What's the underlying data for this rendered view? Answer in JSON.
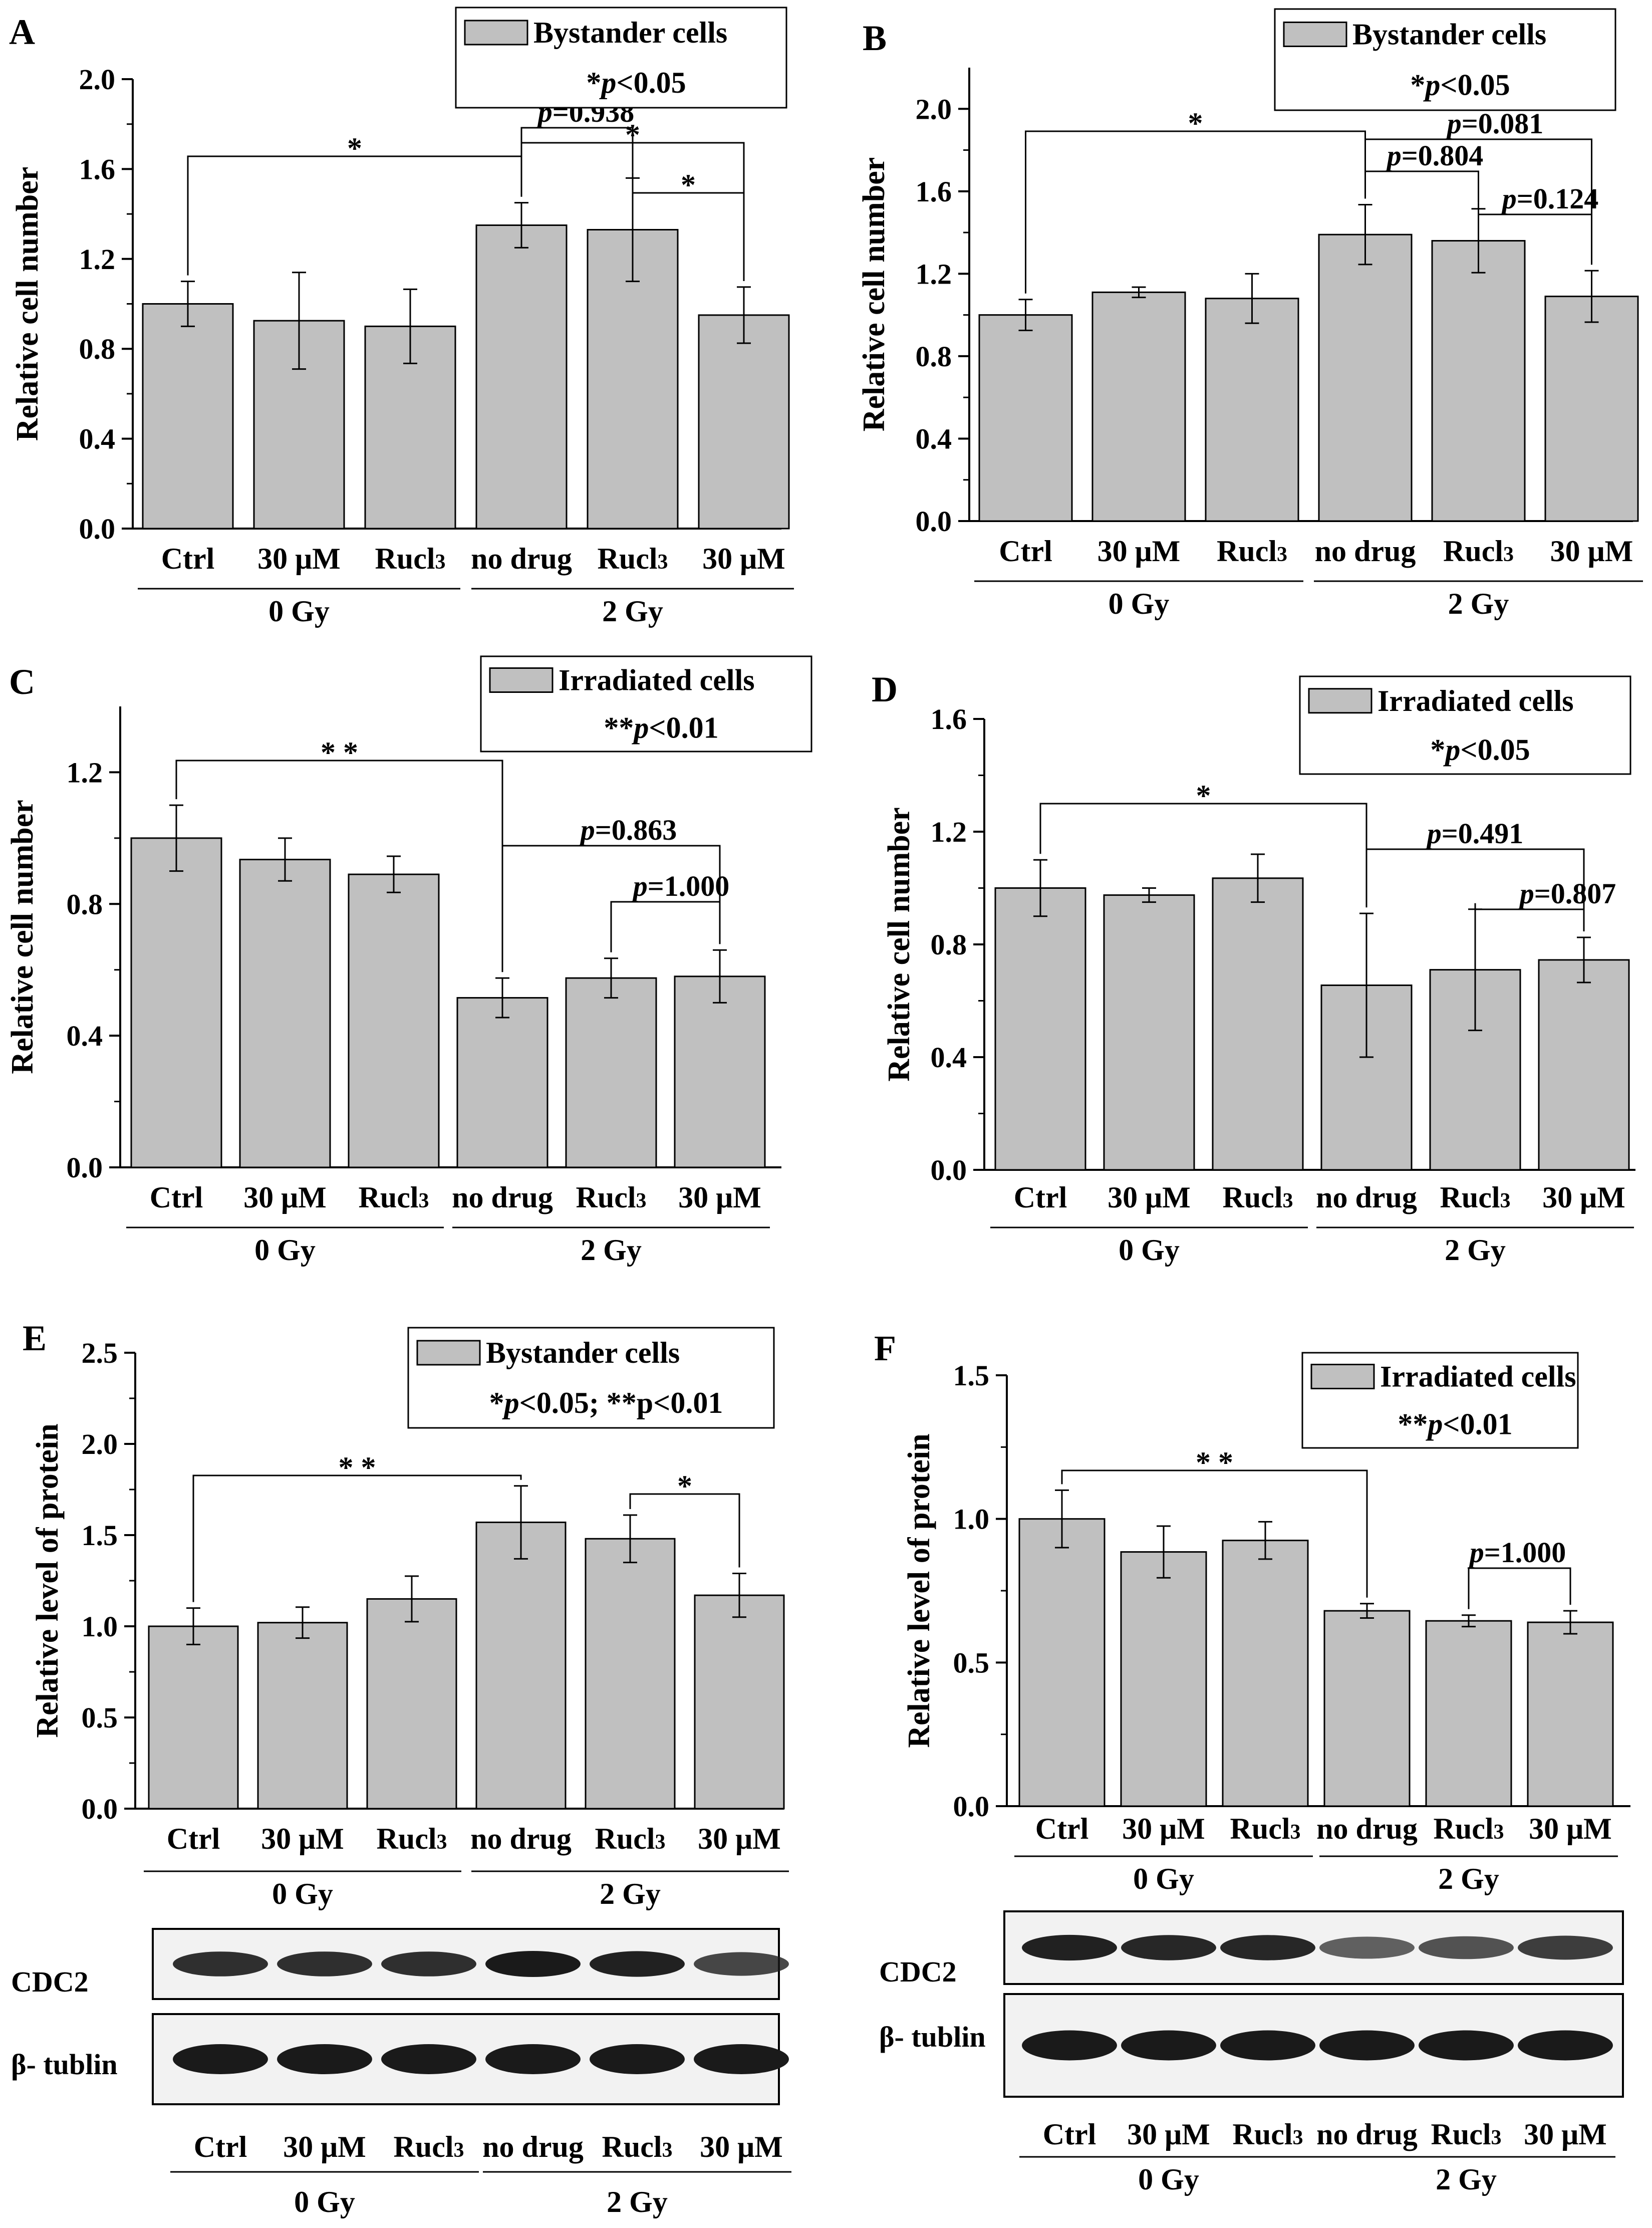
{
  "colors": {
    "bar": "#c0c0c0",
    "axis": "#000000",
    "blot_bg": "#f2f2f2",
    "blot_band": "#1a1a1a"
  },
  "chart_data": [
    {
      "panel": "A",
      "type": "bar",
      "categories": [
        "Ctrl",
        "30 μM",
        "Rucl3",
        "no drug",
        "Rucl3",
        "30 μM"
      ],
      "values": [
        1.0,
        0.925,
        0.9,
        1.35,
        1.33,
        0.95
      ],
      "errors": [
        0.1,
        0.215,
        0.165,
        0.1,
        0.23,
        0.125
      ],
      "ylabel": "Relative cell number",
      "ylim": [
        0,
        2.0
      ],
      "yticks": [
        "0.0",
        "0.4",
        "0.8",
        "1.2",
        "1.6",
        "2.0"
      ],
      "groups": [
        {
          "label": "0 Gy",
          "from": 0,
          "to": 2
        },
        {
          "label": "2 Gy",
          "from": 3,
          "to": 5
        }
      ],
      "legend": {
        "label": "Bystander cells",
        "note": "*p<0.05",
        "position": "top-right"
      },
      "significance": [
        {
          "from": 0,
          "to": 3,
          "label": "*"
        },
        {
          "from": 3,
          "to": 4,
          "label": "p=0.938"
        },
        {
          "from": 3,
          "to": 5,
          "label": "*"
        },
        {
          "from": 4,
          "to": 5,
          "label": "*"
        }
      ],
      "grid": false
    },
    {
      "panel": "B",
      "type": "bar",
      "categories": [
        "Ctrl",
        "30 μM",
        "Rucl3",
        "no drug",
        "Rucl3",
        "30 μM"
      ],
      "values": [
        1.0,
        1.11,
        1.08,
        1.39,
        1.36,
        1.09
      ],
      "errors": [
        0.075,
        0.025,
        0.12,
        0.145,
        0.155,
        0.125
      ],
      "ylabel": "Relative cell number",
      "ylim": [
        0,
        2.2
      ],
      "yticks": [
        "0.0",
        "0.4",
        "0.8",
        "1.2",
        "1.6",
        "2.0"
      ],
      "groups": [
        {
          "label": "0 Gy",
          "from": 0,
          "to": 2
        },
        {
          "label": "2 Gy",
          "from": 3,
          "to": 5
        }
      ],
      "legend": {
        "label": "Bystander cells",
        "note": "*p<0.05",
        "position": "top-right"
      },
      "significance": [
        {
          "from": 0,
          "to": 3,
          "label": "*"
        },
        {
          "from": 3,
          "to": 5,
          "label": "p=0.081"
        },
        {
          "from": 3,
          "to": 4,
          "label": "p=0.804"
        },
        {
          "from": 4,
          "to": 5,
          "label": "p=0.124"
        }
      ],
      "grid": false
    },
    {
      "panel": "C",
      "type": "bar",
      "categories": [
        "Ctrl",
        "30 μM",
        "Rucl3",
        "no drug",
        "Rucl3",
        "30 μM"
      ],
      "values": [
        1.0,
        0.935,
        0.89,
        0.515,
        0.575,
        0.58
      ],
      "errors": [
        0.1,
        0.065,
        0.055,
        0.06,
        0.06,
        0.08
      ],
      "ylabel": "Relative cell number",
      "ylim": [
        0,
        1.4
      ],
      "yticks": [
        "0.0",
        "0.4",
        "0.8",
        "1.2"
      ],
      "groups": [
        {
          "label": "0 Gy",
          "from": 0,
          "to": 2
        },
        {
          "label": "2 Gy",
          "from": 3,
          "to": 5
        }
      ],
      "legend": {
        "label": "Irradiated cells",
        "note": "**p<0.01",
        "position": "top-right"
      },
      "significance": [
        {
          "from": 0,
          "to": 3,
          "label": "**"
        },
        {
          "from": 3,
          "to": 5,
          "label": "p=0.863"
        },
        {
          "from": 4,
          "to": 5,
          "label": "p=1.000"
        }
      ],
      "grid": false
    },
    {
      "panel": "D",
      "type": "bar",
      "categories": [
        "Ctrl",
        "30 μM",
        "Rucl3",
        "no drug",
        "Rucl3",
        "30 μM"
      ],
      "values": [
        1.0,
        0.975,
        1.035,
        0.655,
        0.71,
        0.745
      ],
      "errors": [
        0.1,
        0.025,
        0.085,
        0.255,
        0.215,
        0.08
      ],
      "ylabel": "Relative cell number",
      "ylim": [
        0,
        1.6
      ],
      "yticks": [
        "0.0",
        "0.4",
        "0.8",
        "1.2",
        "1.6"
      ],
      "groups": [
        {
          "label": "0 Gy",
          "from": 0,
          "to": 2
        },
        {
          "label": "2 Gy",
          "from": 3,
          "to": 5
        }
      ],
      "legend": {
        "label": "Irradiated cells",
        "note": "*p<0.05",
        "position": "top-right"
      },
      "significance": [
        {
          "from": 0,
          "to": 3,
          "label": "*"
        },
        {
          "from": 3,
          "to": 5,
          "label": "p=0.491"
        },
        {
          "from": 4,
          "to": 5,
          "label": "p=0.807"
        }
      ],
      "grid": false
    },
    {
      "panel": "E",
      "type": "bar",
      "categories": [
        "Ctrl",
        "30 μM",
        "Rucl3",
        "no drug",
        "Rucl3",
        "30 μM"
      ],
      "values": [
        1.0,
        1.02,
        1.15,
        1.57,
        1.48,
        1.17
      ],
      "errors": [
        0.1,
        0.085,
        0.125,
        0.2,
        0.13,
        0.12
      ],
      "ylabel": "Relative level of protein",
      "ylim": [
        0,
        2.5
      ],
      "yticks": [
        "0.0",
        "0.5",
        "1.0",
        "1.5",
        "2.0",
        "2.5"
      ],
      "groups": [
        {
          "label": "0 Gy",
          "from": 0,
          "to": 2
        },
        {
          "label": "2 Gy",
          "from": 3,
          "to": 5
        }
      ],
      "legend": {
        "label": "Bystander cells",
        "note": "*p<0.05; **p<0.01",
        "position": "top-right"
      },
      "significance": [
        {
          "from": 0,
          "to": 3,
          "label": "**"
        },
        {
          "from": 4,
          "to": 5,
          "label": "*"
        }
      ],
      "grid": false
    },
    {
      "panel": "F",
      "type": "bar",
      "categories": [
        "Ctrl",
        "30 μM",
        "Rucl3",
        "no drug",
        "Rucl3",
        "30 μM"
      ],
      "values": [
        1.0,
        0.885,
        0.925,
        0.68,
        0.645,
        0.64
      ],
      "errors": [
        0.1,
        0.09,
        0.065,
        0.025,
        0.02,
        0.04
      ],
      "ylabel": "Relative level of protein",
      "ylim": [
        0,
        1.5
      ],
      "yticks": [
        "0.0",
        "0.5",
        "1.0",
        "1.5"
      ],
      "groups": [
        {
          "label": "0 Gy",
          "from": 0,
          "to": 2
        },
        {
          "label": "2 Gy",
          "from": 3,
          "to": 5
        }
      ],
      "legend": {
        "label": "Irradiated cells",
        "note": "**p<0.01",
        "position": "top-right"
      },
      "significance": [
        {
          "from": 0,
          "to": 3,
          "label": "**"
        },
        {
          "from": 4,
          "to": 5,
          "label": "p=1.000"
        }
      ],
      "grid": false
    }
  ],
  "blots": [
    {
      "panel": "E",
      "rows": [
        {
          "label": "CDC2",
          "intensity": [
            0.85,
            0.85,
            0.85,
            1.0,
            0.95,
            0.7
          ]
        },
        {
          "label": "β- tublin",
          "intensity": [
            1.0,
            1.0,
            1.0,
            1.0,
            1.0,
            1.0
          ]
        }
      ],
      "lanes": [
        "Ctrl",
        "30 μM",
        "Rucl3",
        "no drug",
        "Rucl3",
        "30 μM"
      ],
      "groups": [
        "0 Gy",
        "2 Gy"
      ]
    },
    {
      "panel": "F",
      "rows": [
        {
          "label": "CDC2",
          "intensity": [
            0.95,
            0.9,
            0.9,
            0.5,
            0.6,
            0.75
          ]
        },
        {
          "label": "β- tublin",
          "intensity": [
            1.0,
            1.0,
            1.0,
            1.0,
            1.0,
            1.0
          ]
        }
      ],
      "lanes": [
        "Ctrl",
        "30 μM",
        "Rucl3",
        "no drug",
        "Rucl3",
        "30 μM"
      ],
      "groups": [
        "0 Gy",
        "2 Gy"
      ]
    }
  ]
}
